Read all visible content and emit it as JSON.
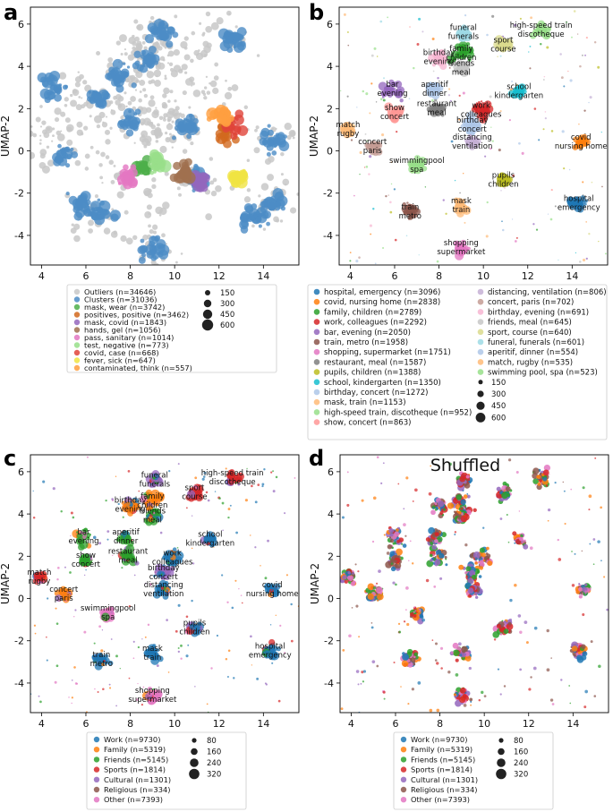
{
  "chart_data": [
    {
      "type": "scatter",
      "panel_label": "a",
      "xlabel": "UMAP-1",
      "ylabel": "UMAP-2",
      "xlim": [
        3.5,
        15.6
      ],
      "ylim": [
        -5.4,
        6.8
      ],
      "xticks": [
        "4",
        "6",
        "8",
        "10",
        "12",
        "14"
      ],
      "yticks": [
        "-4",
        "-2",
        "0",
        "2",
        "4",
        "6"
      ],
      "legend": {
        "entries": [
          {
            "label": "Outliers (n=34646)",
            "color": "#c8c8c8"
          },
          {
            "label": "Clusters (n=31036)",
            "color": "#4c8cc5"
          },
          {
            "label": "mask, wear (n=3742)",
            "color": "#4daf4a"
          },
          {
            "label": "positives, positive (n=3462)",
            "color": "#d2691e"
          },
          {
            "label": "mask, covid (n=1843)",
            "color": "#9467bd"
          },
          {
            "label": "hands, gel (n=1056)",
            "color": "#a0714f"
          },
          {
            "label": "pass, sanitary (n=1014)",
            "color": "#e377c2"
          },
          {
            "label": "test, negative (n=773)",
            "color": "#98df8a"
          },
          {
            "label": "covid, case (n=668)",
            "color": "#e0443a"
          },
          {
            "label": "fever, sick (n=647)",
            "color": "#f0e442"
          },
          {
            "label": "contaminated, think (n=557)",
            "color": "#ff9f40"
          }
        ],
        "sizes": [
          "150",
          "300",
          "450",
          "600"
        ]
      }
    },
    {
      "type": "scatter",
      "panel_label": "b",
      "xlabel": "UMAP-1",
      "ylabel": "UMAP-2",
      "xlim": [
        3.5,
        15.6
      ],
      "ylim": [
        -5.4,
        6.8
      ],
      "xticks": [
        "4",
        "6",
        "8",
        "10",
        "12",
        "14"
      ],
      "yticks": [
        "-4",
        "-2",
        "0",
        "2",
        "4",
        "6"
      ],
      "clusters": [
        {
          "label": [
            "hospital",
            "emergency"
          ],
          "x": 14.3,
          "y": -2.5,
          "color": "#1f77b4"
        },
        {
          "label": [
            "covid",
            "nursing home"
          ],
          "x": 14.4,
          "y": 0.4,
          "color": "#ff7f0e"
        },
        {
          "label": [
            "family",
            "children"
          ],
          "x": 9.0,
          "y": 4.6,
          "color": "#2ca02c"
        },
        {
          "label": [
            "work",
            "colleagues"
          ],
          "x": 9.9,
          "y": 1.9,
          "color": "#d62728"
        },
        {
          "label": [
            "bar",
            "evening"
          ],
          "x": 5.9,
          "y": 2.9,
          "color": "#9467bd"
        },
        {
          "label": [
            "train",
            "metro"
          ],
          "x": 6.7,
          "y": -2.9,
          "color": "#8c564b"
        },
        {
          "label": [
            "shopping",
            "supermarket"
          ],
          "x": 9.0,
          "y": -4.6,
          "color": "#e377c2"
        },
        {
          "label": [
            "restaurant",
            "meal"
          ],
          "x": 7.9,
          "y": 2.0,
          "color": "#7f7f7f"
        },
        {
          "label": [
            "pupils",
            "children"
          ],
          "x": 10.9,
          "y": -1.4,
          "color": "#bcbd22"
        },
        {
          "label": [
            "school",
            "kindergarten"
          ],
          "x": 11.6,
          "y": 2.8,
          "color": "#17becf"
        },
        {
          "label": [
            "birthday",
            "concert"
          ],
          "x": 9.5,
          "y": 1.2,
          "color": "#aec7e8"
        },
        {
          "label": [
            "mask",
            "train"
          ],
          "x": 9.0,
          "y": -2.6,
          "color": "#ffbb78"
        },
        {
          "label": [
            "high-speed train",
            "discotheque"
          ],
          "x": 12.6,
          "y": 5.7,
          "color": "#98df8a"
        },
        {
          "label": [
            "show",
            "concert"
          ],
          "x": 6.0,
          "y": 1.8,
          "color": "#ff9896"
        },
        {
          "label": [
            "distancing",
            "ventilation"
          ],
          "x": 9.5,
          "y": 0.4,
          "color": "#c5b0d5"
        },
        {
          "label": [
            "concert",
            "paris"
          ],
          "x": 5.0,
          "y": 0.2,
          "color": "#c49c94"
        },
        {
          "label": [
            "birthday",
            "evening"
          ],
          "x": 8.0,
          "y": 4.4,
          "color": "#f7b6d2"
        },
        {
          "label": [
            "friends",
            "meal"
          ],
          "x": 9.0,
          "y": 3.9,
          "color": "#c7c7c7"
        },
        {
          "label": [
            "sport",
            "course"
          ],
          "x": 10.9,
          "y": 5.0,
          "color": "#dbdb8d"
        },
        {
          "label": [
            "funeral",
            "funerals"
          ],
          "x": 9.1,
          "y": 5.6,
          "color": "#9edae5"
        },
        {
          "label": [
            "aperitif",
            "dinner"
          ],
          "x": 7.8,
          "y": 2.9,
          "color": "#aec7e8"
        },
        {
          "label": [
            "match",
            "rugby"
          ],
          "x": 3.9,
          "y": 1.0,
          "color": "#ffbb78"
        },
        {
          "label": [
            "swimmingpool",
            "spa"
          ],
          "x": 7.0,
          "y": -0.7,
          "color": "#98df8a"
        }
      ],
      "legend": {
        "entries": [
          {
            "label": "hospital, emergency (n=3096)",
            "color": "#1f77b4"
          },
          {
            "label": "covid, nursing home (n=2838)",
            "color": "#ff7f0e"
          },
          {
            "label": "family, children (n=2789)",
            "color": "#2ca02c"
          },
          {
            "label": "work, colleagues (n=2292)",
            "color": "#d62728"
          },
          {
            "label": "bar, evening (n=2050)",
            "color": "#9467bd"
          },
          {
            "label": "train, metro (n=1958)",
            "color": "#8c564b"
          },
          {
            "label": "shopping, supermarket (n=1751)",
            "color": "#e377c2"
          },
          {
            "label": "restaurant, meal (n=1587)",
            "color": "#7f7f7f"
          },
          {
            "label": "pupils, children (n=1388)",
            "color": "#bcbd22"
          },
          {
            "label": "school, kindergarten (n=1350)",
            "color": "#17becf"
          },
          {
            "label": "birthday, concert (n=1272)",
            "color": "#aec7e8"
          },
          {
            "label": "mask, train (n=1153)",
            "color": "#ffbb78"
          },
          {
            "label": "high-speed train, discotheque (n=952)",
            "color": "#98df8a"
          },
          {
            "label": "show, concert (n=863)",
            "color": "#ff9896"
          },
          {
            "label": "distancing, ventilation (n=806)",
            "color": "#c5b0d5"
          },
          {
            "label": "concert, paris (n=702)",
            "color": "#c49c94"
          },
          {
            "label": "birthday, evening (n=691)",
            "color": "#f7b6d2"
          },
          {
            "label": "friends, meal (n=645)",
            "color": "#c7c7c7"
          },
          {
            "label": "sport, course (n=640)",
            "color": "#dbdb8d"
          },
          {
            "label": "funeral, funerals (n=601)",
            "color": "#9edae5"
          },
          {
            "label": "aperitif, dinner (n=554)",
            "color": "#aec7e8"
          },
          {
            "label": "match, rugby (n=535)",
            "color": "#ffbb78"
          },
          {
            "label": "swimming pool, spa (n=523)",
            "color": "#98df8a"
          }
        ],
        "sizes": [
          "150",
          "300",
          "450",
          "600"
        ]
      }
    },
    {
      "type": "scatter",
      "panel_label": "c",
      "xlabel": "UMAP-1",
      "ylabel": "UMAP-2",
      "xlim": [
        3.5,
        15.6
      ],
      "ylim": [
        -5.4,
        6.8
      ],
      "xticks": [
        "4",
        "6",
        "8",
        "10",
        "12",
        "14"
      ],
      "yticks": [
        "-4",
        "-2",
        "0",
        "2",
        "4",
        "6"
      ],
      "labels_same_as_panel": "b",
      "legend": {
        "entries": [
          {
            "label": "Work (n=9730)",
            "color": "#1f77b4"
          },
          {
            "label": "Family (n=5319)",
            "color": "#ff7f0e"
          },
          {
            "label": "Friends (n=5145)",
            "color": "#2ca02c"
          },
          {
            "label": "Sports (n=1814)",
            "color": "#d62728"
          },
          {
            "label": "Cultural (n=1301)",
            "color": "#9467bd"
          },
          {
            "label": "Religious (n=334)",
            "color": "#8c564b"
          },
          {
            "label": "Other (n=7393)",
            "color": "#e377c2"
          }
        ],
        "sizes": [
          "80",
          "160",
          "240",
          "320"
        ]
      }
    },
    {
      "type": "scatter",
      "panel_label": "d",
      "title": "Shuffled",
      "xlabel": "UMAP-1",
      "ylabel": "UMAP-2",
      "xlim": [
        3.5,
        15.6
      ],
      "ylim": [
        -5.4,
        6.8
      ],
      "xticks": [
        "4",
        "6",
        "8",
        "10",
        "12",
        "14"
      ],
      "yticks": [
        "-4",
        "-2",
        "0",
        "2",
        "4",
        "6"
      ],
      "legend": {
        "entries": [
          {
            "label": "Work (n=9730)",
            "color": "#1f77b4"
          },
          {
            "label": "Family (n=5319)",
            "color": "#ff7f0e"
          },
          {
            "label": "Friends (n=5145)",
            "color": "#2ca02c"
          },
          {
            "label": "Sports (n=1814)",
            "color": "#d62728"
          },
          {
            "label": "Cultural (n=1301)",
            "color": "#9467bd"
          },
          {
            "label": "Religious (n=334)",
            "color": "#8c564b"
          },
          {
            "label": "Other (n=7393)",
            "color": "#e377c2"
          }
        ],
        "sizes": [
          "80",
          "160",
          "240",
          "320"
        ]
      }
    }
  ]
}
